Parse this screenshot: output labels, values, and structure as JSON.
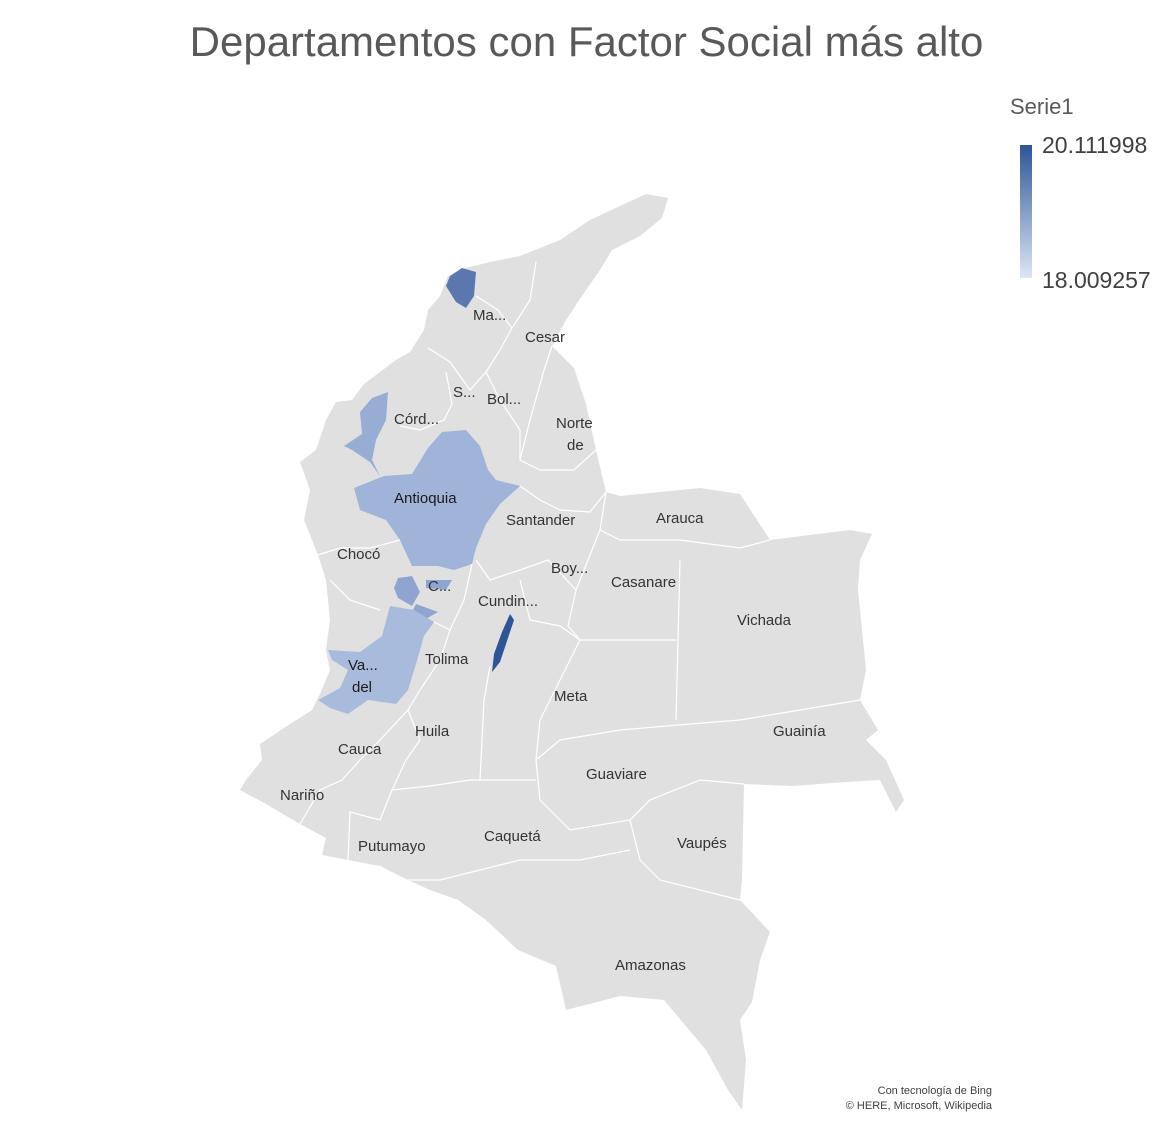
{
  "title": "Departamentos con Factor Social más alto",
  "legend": {
    "title": "Serie1",
    "max": "20.111998",
    "min": "18.009257",
    "color_high": "#2e5597",
    "color_low": "#dde6f5"
  },
  "colors": {
    "no_data": "#e0e0e0",
    "border": "#ffffff"
  },
  "highlighted_departments": [
    {
      "label": "Ma...",
      "shade": "#5a77b0"
    },
    {
      "label": "Córd...",
      "shade": "#98add3"
    },
    {
      "label": "Antioquia",
      "shade": "#a0b3d8"
    },
    {
      "label": "C...",
      "shade": "#8fa5cf"
    },
    {
      "label": "Va... del",
      "shade": "#a9bbdd"
    },
    {
      "label": "Cundin...",
      "shade": "#2e5597"
    }
  ],
  "labels": {
    "magdalena": "Ma...",
    "cesar": "Cesar",
    "sucre": "S...",
    "bolivar": "Bol...",
    "cordoba": "Córd...",
    "norte_line1": "Norte",
    "norte_line2": "de",
    "antioquia": "Antioquia",
    "santander": "Santander",
    "arauca": "Arauca",
    "choco": "Chocó",
    "boyaca": "Boy...",
    "casanare": "Casanare",
    "caldas": "C...",
    "cundinamarca": "Cundin...",
    "vichada": "Vichada",
    "valle_line1": "Va...",
    "valle_line2": "del",
    "tolima": "Tolima",
    "meta": "Meta",
    "guainia": "Guainía",
    "huila": "Huila",
    "cauca": "Cauca",
    "guaviare": "Guaviare",
    "narino": "Nariño",
    "vaupes": "Vaupés",
    "caqueta": "Caquetá",
    "putumayo": "Putumayo",
    "amazonas": "Amazonas"
  },
  "credit": {
    "line1": "Con tecnología de Bing",
    "line2": "© HERE, Microsoft, Wikipedia"
  }
}
